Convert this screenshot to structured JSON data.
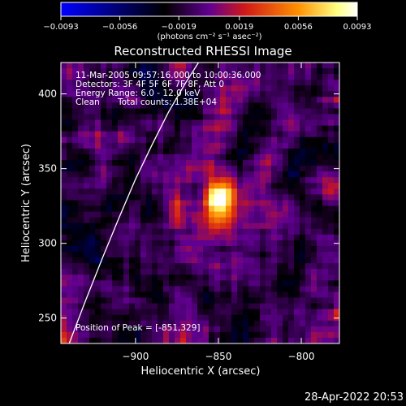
{
  "chart_data": {
    "type": "heatmap",
    "title": "Reconstructed RHESSI Image",
    "xlabel": "Heliocentric X (arcsec)",
    "ylabel": "Heliocentric Y (arcsec)",
    "xlim": [
      -945,
      -777
    ],
    "ylim": [
      233,
      421
    ],
    "x_ticks": [
      -900,
      -850,
      -800
    ],
    "x_tick_labels": [
      "−900",
      "−850",
      "−800"
    ],
    "y_ticks": [
      250,
      300,
      350,
      400
    ],
    "y_tick_labels": [
      "250",
      "300",
      "350",
      "400"
    ],
    "colorbar": {
      "range": [
        -0.0093,
        0.0093
      ],
      "ticks": [
        -0.0093,
        -0.0056,
        -0.0019,
        0.0019,
        0.0056,
        0.0093
      ],
      "tick_labels": [
        "−0.0093",
        "−0.0056",
        "−0.0019",
        "0.0019",
        "0.0056",
        "0.0093"
      ],
      "unit_label": "(photons cm⁻² s⁻¹ asec⁻²)",
      "colors": [
        "#0000ff",
        "#000000",
        "#600090",
        "#d01818",
        "#ff9000",
        "#ffff80",
        "#ffffff"
      ]
    },
    "annotations": [
      "11-Mar-2005 09:57:16.000 to 10:00:36.000",
      "Detectors: 3F 4F 5F 6F 7F 8F, Att 0",
      "Energy Range: 6.0 - 12.0 keV",
      "Clean",
      "Total counts: 1.38E+04"
    ],
    "peak_label": "Position of Peak = [-851,329]",
    "peak": {
      "x": -851,
      "y": 329
    },
    "limb_curve": {
      "x": [
        -940,
        -930,
        -920,
        -910,
        -900,
        -890,
        -880,
        -870,
        -862
      ],
      "y": [
        233,
        262,
        290,
        317,
        343,
        366,
        388,
        407,
        421
      ]
    },
    "footer_timestamp": "28-Apr-2022 20:53"
  }
}
